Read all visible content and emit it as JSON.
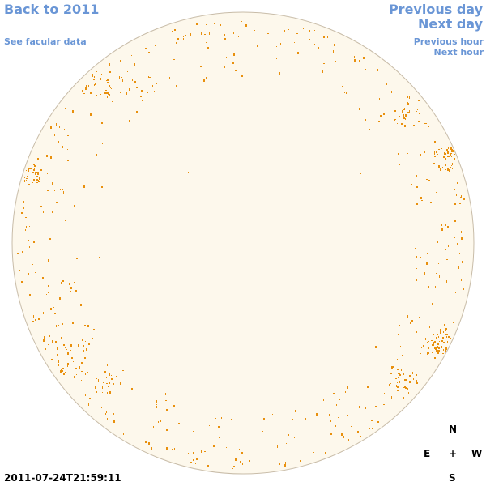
{
  "nav": {
    "back_label": "Back to 2011",
    "facular_label": "See facular data",
    "prev_day_label": "Previous day",
    "next_day_label": "Next day",
    "prev_hour_label": "Previous hour",
    "next_hour_label": "Next hour",
    "link_color": "#6a96d6"
  },
  "image": {
    "timestamp": "2011-07-24T21:59:11",
    "disk_color": "#fdf8ec",
    "facula_color": "#e8900e"
  },
  "compass": {
    "north": "N",
    "east": "E",
    "center": "+",
    "west": "W",
    "south": "S"
  }
}
